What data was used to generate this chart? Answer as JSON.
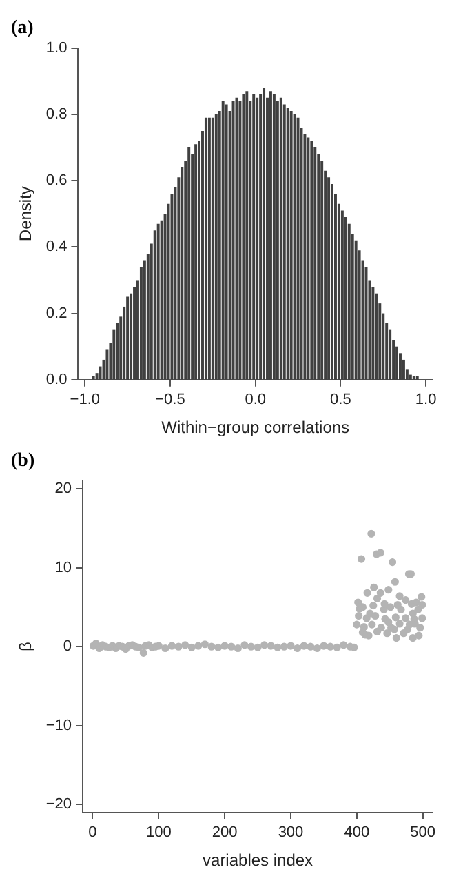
{
  "chart_data": [
    {
      "type": "histogram",
      "title": "(a)",
      "xlabel": "Within−group correlations",
      "ylabel": "Density",
      "color": "#404040",
      "bins": [
        -1,
        -0.98,
        -0.96,
        -0.94,
        -0.92,
        -0.9,
        -0.88,
        -0.86,
        -0.84,
        -0.82,
        -0.8,
        -0.78,
        -0.76,
        -0.74,
        -0.72,
        -0.7,
        -0.68,
        -0.66,
        -0.64,
        -0.62,
        -0.6,
        -0.58,
        -0.56,
        -0.54,
        -0.52,
        -0.5,
        -0.48,
        -0.46,
        -0.44,
        -0.42,
        -0.4,
        -0.38,
        -0.36,
        -0.34,
        -0.32,
        -0.3,
        -0.28,
        -0.26,
        -0.24,
        -0.22,
        -0.2,
        -0.18,
        -0.16,
        -0.14,
        -0.12,
        -0.1,
        -0.08,
        -0.06,
        -0.04,
        -0.02,
        0,
        0.02,
        0.04,
        0.06,
        0.08,
        0.1,
        0.12,
        0.14,
        0.16,
        0.18,
        0.2,
        0.22,
        0.24,
        0.26,
        0.28,
        0.3,
        0.32,
        0.34,
        0.36,
        0.38,
        0.4,
        0.42,
        0.44,
        0.46,
        0.48,
        0.5,
        0.52,
        0.54,
        0.56,
        0.58,
        0.6,
        0.62,
        0.64,
        0.66,
        0.68,
        0.7,
        0.72,
        0.74,
        0.76,
        0.78,
        0.8,
        0.82,
        0.84,
        0.86,
        0.88,
        0.9,
        0.92,
        0.94,
        0.96,
        0.98,
        1
      ],
      "values": [
        0,
        0,
        0.01,
        0.02,
        0.04,
        0.06,
        0.09,
        0.11,
        0.15,
        0.17,
        0.19,
        0.22,
        0.25,
        0.26,
        0.28,
        0.3,
        0.34,
        0.36,
        0.38,
        0.41,
        0.45,
        0.47,
        0.48,
        0.5,
        0.53,
        0.56,
        0.58,
        0.61,
        0.64,
        0.66,
        0.7,
        0.68,
        0.71,
        0.72,
        0.75,
        0.79,
        0.79,
        0.79,
        0.8,
        0.81,
        0.84,
        0.83,
        0.81,
        0.84,
        0.85,
        0.84,
        0.86,
        0.87,
        0.84,
        0.86,
        0.85,
        0.86,
        0.88,
        0.85,
        0.87,
        0.86,
        0.84,
        0.85,
        0.83,
        0.82,
        0.81,
        0.8,
        0.79,
        0.76,
        0.74,
        0.73,
        0.72,
        0.7,
        0.68,
        0.66,
        0.63,
        0.61,
        0.59,
        0.56,
        0.53,
        0.51,
        0.49,
        0.47,
        0.44,
        0.42,
        0.39,
        0.36,
        0.34,
        0.3,
        0.28,
        0.26,
        0.23,
        0.2,
        0.17,
        0.15,
        0.12,
        0.1,
        0.08,
        0.06,
        0.03,
        0.015,
        0.01,
        0.01,
        0,
        0
      ],
      "xlim": [
        -1.04,
        1.04
      ],
      "xticks": [
        {
          "value": -1,
          "label": "−1.0"
        },
        {
          "value": -0.5,
          "label": "−0.5"
        },
        {
          "value": 0,
          "label": "0.0"
        },
        {
          "value": 0.5,
          "label": "0.5"
        },
        {
          "value": 1,
          "label": "1.0"
        }
      ],
      "ylim": [
        0,
        1
      ],
      "yticks": [
        {
          "value": 0,
          "label": "0.0"
        },
        {
          "value": 0.2,
          "label": "0.2"
        },
        {
          "value": 0.4,
          "label": "0.4"
        },
        {
          "value": 0.6,
          "label": "0.6"
        },
        {
          "value": 0.8,
          "label": "0.8"
        },
        {
          "value": 1,
          "label": "1.0"
        }
      ]
    },
    {
      "type": "scatter",
      "title": "(b)",
      "xlabel": "variables index",
      "ylabel": "β",
      "color": "#b4b4b4",
      "marker": "circle",
      "x": [
        1,
        5,
        10,
        15,
        20,
        25,
        30,
        35,
        40,
        45,
        50,
        55,
        60,
        65,
        70,
        77,
        80,
        85,
        90,
        95,
        100,
        110,
        120,
        130,
        140,
        150,
        160,
        170,
        180,
        190,
        200,
        210,
        220,
        230,
        240,
        250,
        260,
        270,
        280,
        290,
        300,
        310,
        320,
        330,
        340,
        350,
        360,
        370,
        380,
        390,
        396,
        407,
        422,
        430,
        436,
        454,
        479,
        482,
        458,
        426,
        416,
        436,
        448,
        465,
        474,
        498,
        402,
        404,
        431,
        490,
        409,
        420,
        441,
        451,
        467,
        485,
        493,
        415,
        428,
        443,
        459,
        474,
        487,
        499,
        400,
        411,
        423,
        437,
        448,
        457,
        465,
        477,
        488,
        496,
        409,
        418,
        431,
        446,
        460,
        471,
        485,
        494,
        413,
        452,
        480,
        403,
        425,
        442,
        462,
        483,
        499
      ],
      "values": [
        0.1,
        0.4,
        -0.2,
        0.2,
        0,
        -0.1,
        0.1,
        -0.2,
        0.1,
        0,
        -0.3,
        0.1,
        0.2,
        0,
        -0.1,
        -0.8,
        0.1,
        0.2,
        -0.1,
        0,
        0.1,
        -0.2,
        0.1,
        0,
        0.2,
        -0.1,
        0.1,
        0.3,
        0,
        -0.1,
        0.1,
        0,
        -0.2,
        0.2,
        0,
        -0.1,
        0.2,
        0.1,
        -0.1,
        0,
        0.1,
        -0.2,
        0.1,
        0,
        -0.2,
        0.1,
        0,
        -0.1,
        0.2,
        0,
        -0.1,
        11.1,
        14.3,
        11.7,
        11.9,
        10.7,
        9.2,
        9.2,
        8.2,
        7.5,
        6.8,
        6.8,
        7.2,
        6.4,
        5.9,
        6.3,
        5.6,
        4.8,
        6.1,
        5.6,
        5,
        4.2,
        4.7,
        5,
        4.7,
        4.2,
        4.7,
        3.6,
        3.9,
        3.5,
        3.7,
        3.6,
        3.5,
        3.6,
        2.8,
        2.5,
        2.8,
        2.4,
        3.1,
        2.2,
        2.9,
        2.2,
        2.9,
        2.4,
        1.8,
        1.4,
        1.9,
        1.7,
        1.1,
        1.7,
        1.1,
        1.4,
        1.5,
        2.4,
        2.8,
        3.9,
        5.2,
        5.4,
        5.3,
        5.4,
        5.3
      ],
      "xlim": [
        -15,
        515
      ],
      "xticks": [
        0,
        100,
        200,
        300,
        400,
        500
      ],
      "ylim": [
        -21,
        21
      ],
      "yticks": [
        {
          "value": -20,
          "label": "−20"
        },
        {
          "value": -10,
          "label": "−10"
        },
        0,
        10,
        20
      ]
    }
  ]
}
